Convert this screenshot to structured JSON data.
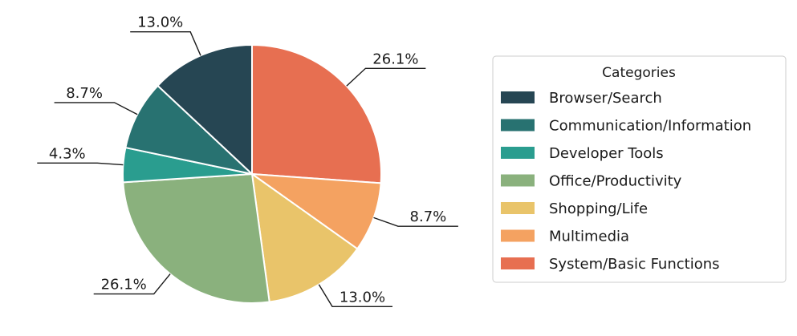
{
  "chart_data": {
    "type": "pie",
    "title": "",
    "legend_title": "Categories",
    "legend_position": "right",
    "start_angle_deg": 90,
    "direction": "clockwise-from-top",
    "slices": [
      {
        "label": "System/Basic Functions",
        "value": 26.1,
        "label_text": "26.1%",
        "color": "#E76F51"
      },
      {
        "label": "Multimedia",
        "value": 8.7,
        "label_text": "8.7%",
        "color": "#F4A261"
      },
      {
        "label": "Shopping/Life",
        "value": 13.0,
        "label_text": "13.0%",
        "color": "#E9C46A"
      },
      {
        "label": "Office/Productivity",
        "value": 26.1,
        "label_text": "26.1%",
        "color": "#8AB17D"
      },
      {
        "label": "Developer Tools",
        "value": 4.3,
        "label_text": "4.3%",
        "color": "#2A9D8F"
      },
      {
        "label": "Communication/Information",
        "value": 8.7,
        "label_text": "8.7%",
        "color": "#287271"
      },
      {
        "label": "Browser/Search",
        "value": 13.0,
        "label_text": "13.0%",
        "color": "#264653"
      }
    ],
    "legend_order": [
      "Browser/Search",
      "Communication/Information",
      "Developer Tools",
      "Office/Productivity",
      "Shopping/Life",
      "Multimedia",
      "System/Basic Functions"
    ]
  }
}
